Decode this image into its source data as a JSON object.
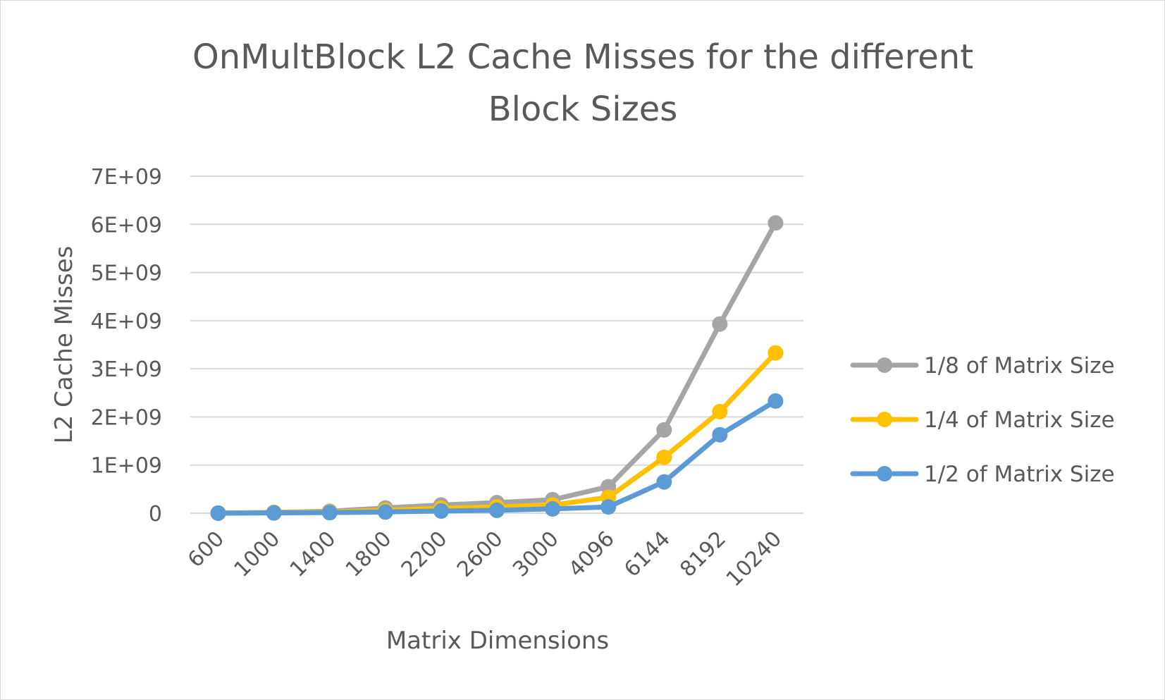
{
  "chart_data": {
    "type": "line",
    "title_lines": [
      "OnMultBlock L2 Cache Misses for the different",
      "Block Sizes"
    ],
    "xlabel": "Matrix Dimensions",
    "ylabel": "L2 Cache Misses",
    "categories": [
      "600",
      "1000",
      "1400",
      "1800",
      "2200",
      "2600",
      "3000",
      "4096",
      "6144",
      "8192",
      "10240"
    ],
    "y_ticks": [
      "0",
      "1E+09",
      "2E+09",
      "3E+09",
      "4E+09",
      "5E+09",
      "6E+09",
      "7E+09"
    ],
    "ylim": [
      0,
      7000000000
    ],
    "grid": true,
    "legend_position": "right",
    "series": [
      {
        "name": "1/8 of Matrix Size",
        "color": "#a5a5a5",
        "values": [
          2000000,
          18000000,
          40000000,
          110000000,
          170000000,
          220000000,
          280000000,
          550000000,
          1730000000,
          3930000000,
          6030000000
        ]
      },
      {
        "name": "1/4 of Matrix Size",
        "color": "#ffc000",
        "values": [
          1000000,
          12000000,
          25000000,
          60000000,
          100000000,
          130000000,
          170000000,
          330000000,
          1160000000,
          2110000000,
          3330000000
        ]
      },
      {
        "name": "1/2 of Matrix Size",
        "color": "#5b9bd5",
        "values": [
          500000,
          5000000,
          12000000,
          25000000,
          45000000,
          60000000,
          90000000,
          130000000,
          650000000,
          1630000000,
          2330000000
        ]
      }
    ]
  }
}
